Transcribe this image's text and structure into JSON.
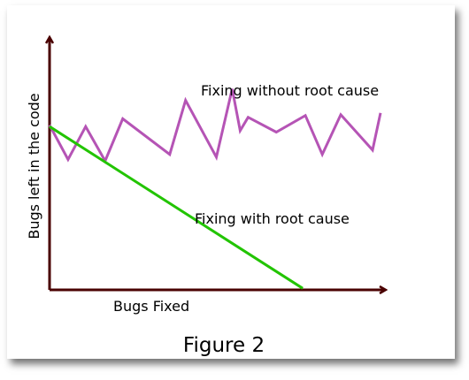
{
  "figure": {
    "caption": "Figure 2"
  },
  "chart_data": {
    "type": "line",
    "title": "",
    "xlabel": "Bugs Fixed",
    "ylabel": "Bugs left in the code",
    "xlim": [
      0,
      100
    ],
    "ylim": [
      0,
      100
    ],
    "grid": false,
    "legend": "none",
    "axis_color": "#4a0000",
    "series": [
      {
        "name": "Fixing without root cause",
        "color": "#b554b5",
        "x": [
          0,
          5.6,
          10.9,
          16.8,
          22.1,
          36.3,
          41.1,
          50.4,
          55.2,
          57.6,
          60.0,
          68.5,
          77.3,
          82.4,
          88.0,
          97.6,
          100
        ],
        "y": [
          65.2,
          51.6,
          64.6,
          51.0,
          67.7,
          53.6,
          75.0,
          52.5,
          79.5,
          63.0,
          68.3,
          62.4,
          69.0,
          53.6,
          69.3,
          55.3,
          70.0
        ]
      },
      {
        "name": "Fixing with root cause",
        "color": "#22c400",
        "x": [
          0,
          76.5
        ],
        "y": [
          64.6,
          0.6
        ]
      }
    ]
  },
  "colors": {
    "background": "#ffffff",
    "text": "#000000"
  }
}
